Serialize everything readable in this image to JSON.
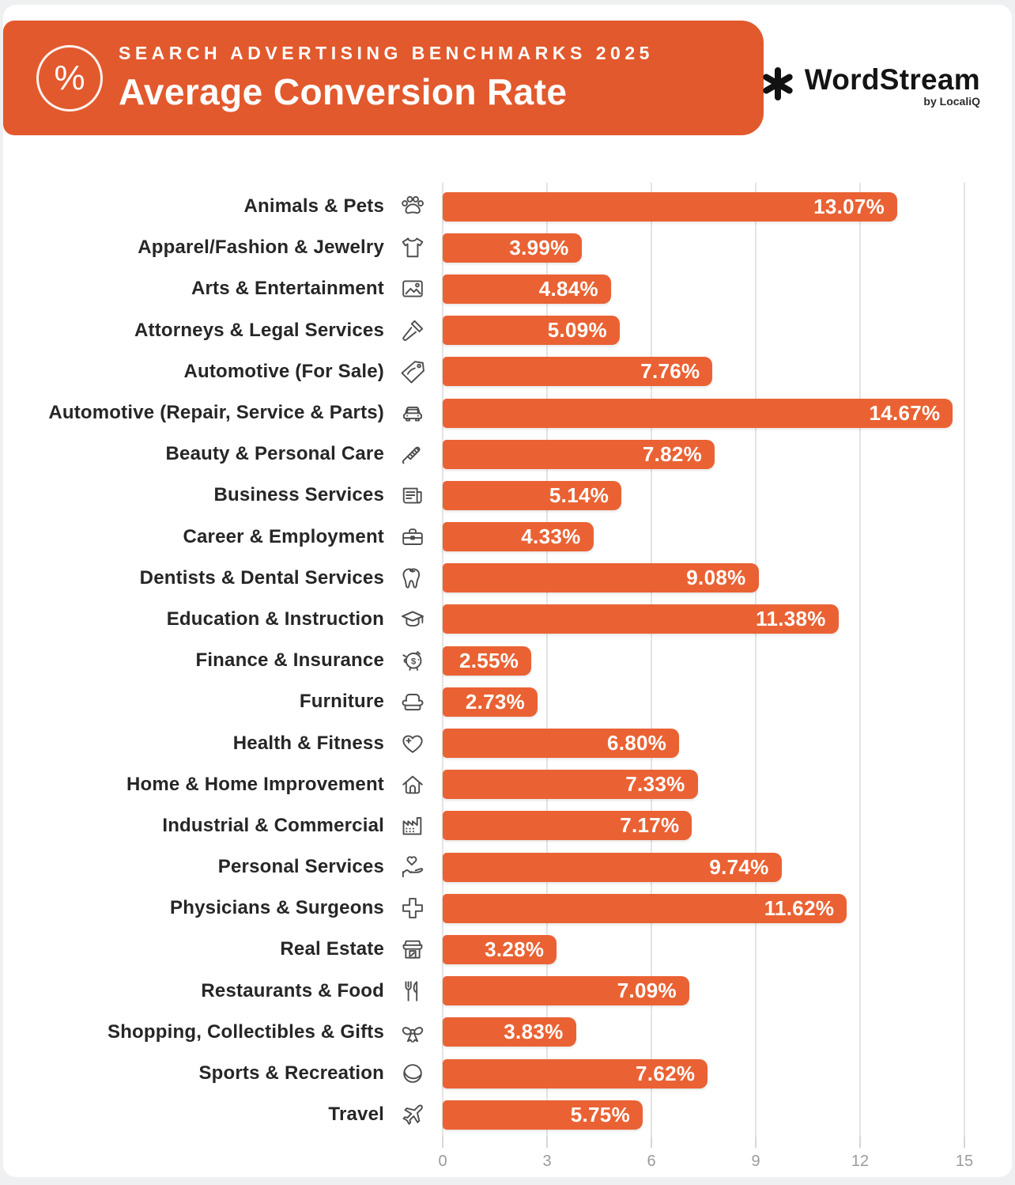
{
  "header": {
    "eyebrow": "SEARCH ADVERTISING BENCHMARKS 2025",
    "title": "Average Conversion Rate",
    "badge_symbol": "%"
  },
  "logo": {
    "name": "WordStream",
    "byline": "by LocaliQ"
  },
  "colors": {
    "banner": "#E2592D",
    "bar": "#EA6233",
    "label_text": "#262626",
    "axis_text": "#9b9b9b",
    "gridline": "#e4e4e4"
  },
  "chart_data": {
    "type": "bar",
    "orientation": "horizontal",
    "title": "Average Conversion Rate",
    "xlabel": "",
    "ylabel": "",
    "xlim": [
      0,
      15
    ],
    "x_ticks": [
      0,
      3,
      6,
      9,
      12,
      15
    ],
    "grid": true,
    "value_suffix": "%",
    "categories": [
      "Animals & Pets",
      "Apparel/Fashion & Jewelry",
      "Arts & Entertainment",
      "Attorneys & Legal Services",
      "Automotive (For Sale)",
      "Automotive (Repair, Service & Parts)",
      "Beauty & Personal Care",
      "Business Services",
      "Career & Employment",
      "Dentists & Dental Services",
      "Education & Instruction",
      "Finance & Insurance",
      "Furniture",
      "Health & Fitness",
      "Home & Home Improvement",
      "Industrial & Commercial",
      "Personal Services",
      "Physicians & Surgeons",
      "Real Estate",
      "Restaurants & Food",
      "Shopping, Collectibles & Gifts",
      "Sports & Recreation",
      "Travel"
    ],
    "values": [
      13.07,
      3.99,
      4.84,
      5.09,
      7.76,
      14.67,
      7.82,
      5.14,
      4.33,
      9.08,
      11.38,
      2.55,
      2.73,
      6.8,
      7.33,
      7.17,
      9.74,
      11.62,
      3.28,
      7.09,
      3.83,
      7.62,
      5.75
    ],
    "value_labels": [
      "13.07%",
      "3.99%",
      "4.84%",
      "5.09%",
      "7.76%",
      "14.67%",
      "7.82%",
      "5.14%",
      "4.33%",
      "9.08%",
      "11.38%",
      "2.55%",
      "2.73%",
      "6.80%",
      "7.33%",
      "7.17%",
      "9.74%",
      "11.62%",
      "3.28%",
      "7.09%",
      "3.83%",
      "7.62%",
      "5.75%"
    ],
    "icons": [
      "paw-icon",
      "tshirt-icon",
      "picture-icon",
      "gavel-icon",
      "tag-icon",
      "car-icon",
      "brush-icon",
      "newspaper-icon",
      "briefcase-icon",
      "tooth-icon",
      "graduation-cap-icon",
      "piggy-bank-icon",
      "armchair-icon",
      "heart-plus-icon",
      "house-icon",
      "factory-icon",
      "hand-heart-icon",
      "medical-cross-icon",
      "storefront-icon",
      "cutlery-icon",
      "gift-bow-icon",
      "ball-icon",
      "plane-icon"
    ]
  }
}
